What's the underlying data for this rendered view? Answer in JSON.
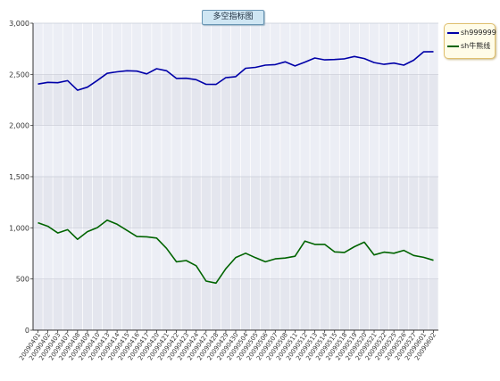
{
  "chart_data": {
    "type": "line",
    "title": "多空指标图",
    "xlabel": "",
    "ylabel": "",
    "ylim": [
      0,
      3000
    ],
    "yticks": [
      0,
      500,
      1000,
      1500,
      2000,
      2500,
      3000
    ],
    "ytick_labels": [
      "0",
      "500",
      "1,000",
      "1,500",
      "2,000",
      "2,500",
      "3,000"
    ],
    "grid": true,
    "legend_position": "top-right",
    "categories": [
      "20090401",
      "20090402",
      "20090403",
      "20090407",
      "20090408",
      "20090409",
      "20090410",
      "20090413",
      "20090414",
      "20090415",
      "20090416",
      "20090417",
      "20090420",
      "20090421",
      "20090422",
      "20090423",
      "20090424",
      "20090427",
      "20090428",
      "20090429",
      "20090430",
      "20090504",
      "20090505",
      "20090506",
      "20090507",
      "20090508",
      "20090511",
      "20090512",
      "20090513",
      "20090514",
      "20090515",
      "20090518",
      "20090519",
      "20090520",
      "20090521",
      "20090522",
      "20090525",
      "20090526",
      "20090527",
      "20090601",
      "20090602"
    ],
    "series": [
      {
        "name": "sh999999",
        "color": "#0000a8",
        "values": [
          2405,
          2422,
          2418,
          2438,
          2345,
          2375,
          2440,
          2510,
          2525,
          2535,
          2532,
          2505,
          2555,
          2535,
          2460,
          2462,
          2448,
          2403,
          2402,
          2468,
          2478,
          2560,
          2568,
          2590,
          2595,
          2622,
          2582,
          2620,
          2660,
          2642,
          2645,
          2652,
          2675,
          2655,
          2615,
          2598,
          2610,
          2590,
          2638,
          2720,
          2722
        ]
      },
      {
        "name": "sh牛熊线",
        "color": "#006400",
        "values": [
          1050,
          1015,
          950,
          982,
          888,
          963,
          1002,
          1075,
          1035,
          975,
          915,
          912,
          900,
          800,
          668,
          680,
          630,
          480,
          460,
          600,
          710,
          752,
          708,
          668,
          697,
          705,
          722,
          870,
          838,
          838,
          765,
          760,
          815,
          860,
          735,
          762,
          752,
          780,
          730,
          712,
          683
        ]
      }
    ]
  }
}
